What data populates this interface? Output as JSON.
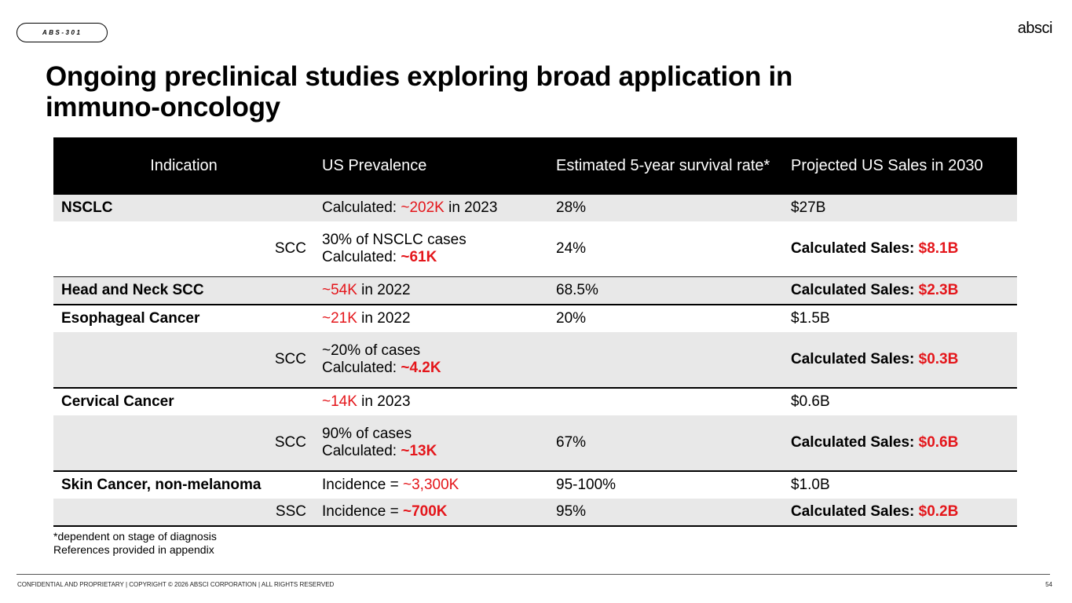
{
  "tag": "ABS-301",
  "logo": "absci",
  "title": "Ongoing preclinical studies exploring broad application in immuno-oncology",
  "table": {
    "headers": [
      "Indication",
      "US Prevalence",
      "Estimated 5-year survival rate*",
      "Projected US Sales in 2030"
    ],
    "rows": [
      {
        "indication": "NSCLC",
        "prev_pre": "Calculated: ",
        "prev_red": "~202K",
        "prev_post": " in 2023",
        "survival": "28%",
        "sales": "$27B"
      },
      {
        "indication": "SCC",
        "prev_line1": "30% of NSCLC cases",
        "prev_pre": "Calculated: ",
        "prev_red": "~61K",
        "survival": "24%",
        "sales_label": "Calculated Sales: ",
        "sales_red": "$8.1B"
      },
      {
        "indication": "Head and Neck SCC",
        "prev_red": "~54K",
        "prev_post": " in 2022",
        "survival": "68.5%",
        "sales_label": "Calculated Sales: ",
        "sales_red": "$2.3B"
      },
      {
        "indication": "Esophageal Cancer",
        "prev_red": "~21K",
        "prev_post": " in 2022",
        "survival": "20%",
        "sales": "$1.5B"
      },
      {
        "indication": "SCC",
        "prev_line1": "~20% of cases",
        "prev_pre": "Calculated: ",
        "prev_red": "~4.2K",
        "survival": "",
        "sales_label": "Calculated Sales: ",
        "sales_red": "$0.3B"
      },
      {
        "indication": "Cervical Cancer",
        "prev_red": "~14K",
        "prev_post": " in 2023",
        "survival": "",
        "sales": "$0.6B"
      },
      {
        "indication": "SCC",
        "prev_line1": "90% of cases",
        "prev_pre": "Calculated: ",
        "prev_red": "~13K",
        "survival": "67%",
        "sales_label": "Calculated Sales: ",
        "sales_red": "$0.6B"
      },
      {
        "indication": "Skin Cancer, non-melanoma",
        "prev_pre": "Incidence = ",
        "prev_red": "~3,300K",
        "survival": "95-100%",
        "sales": "$1.0B"
      },
      {
        "indication": "SSC",
        "prev_pre": "Incidence = ",
        "prev_red": "~700K",
        "survival": "95%",
        "sales_label": "Calculated Sales: ",
        "sales_red": "$0.2B"
      }
    ]
  },
  "notes": [
    "*dependent on stage of diagnosis",
    "References provided in appendix"
  ],
  "footer": "CONFIDENTIAL AND PROPRIETARY | COPYRIGHT © 2026 ABSCI CORPORATION | ALL RIGHTS RESERVED",
  "page_number": "54"
}
